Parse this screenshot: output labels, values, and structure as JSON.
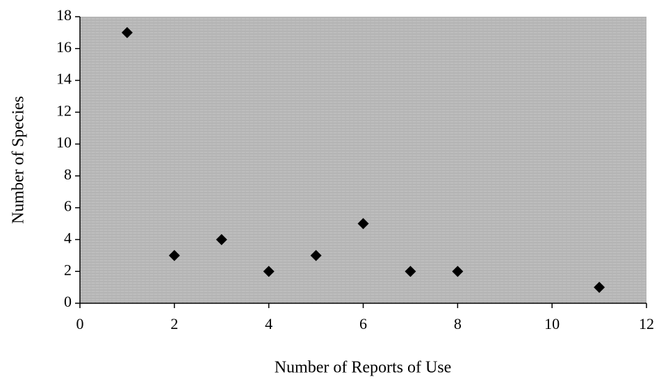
{
  "chart_data": {
    "type": "scatter",
    "x_label": "Number of Reports of Use",
    "y_label": "Number of Species",
    "x": [
      1,
      2,
      3,
      4,
      5,
      6,
      7,
      8,
      11
    ],
    "values": [
      17,
      3,
      4,
      2,
      3,
      5,
      2,
      2,
      1
    ],
    "color": "#000000",
    "background": "#b9b9b9",
    "xlim": [
      0,
      12
    ],
    "xticks": [
      0,
      2,
      4,
      6,
      8,
      10,
      12
    ],
    "ylim": [
      0,
      18
    ],
    "yticks": [
      0,
      2,
      4,
      6,
      8,
      10,
      12,
      14,
      16,
      18
    ],
    "grid": false
  }
}
